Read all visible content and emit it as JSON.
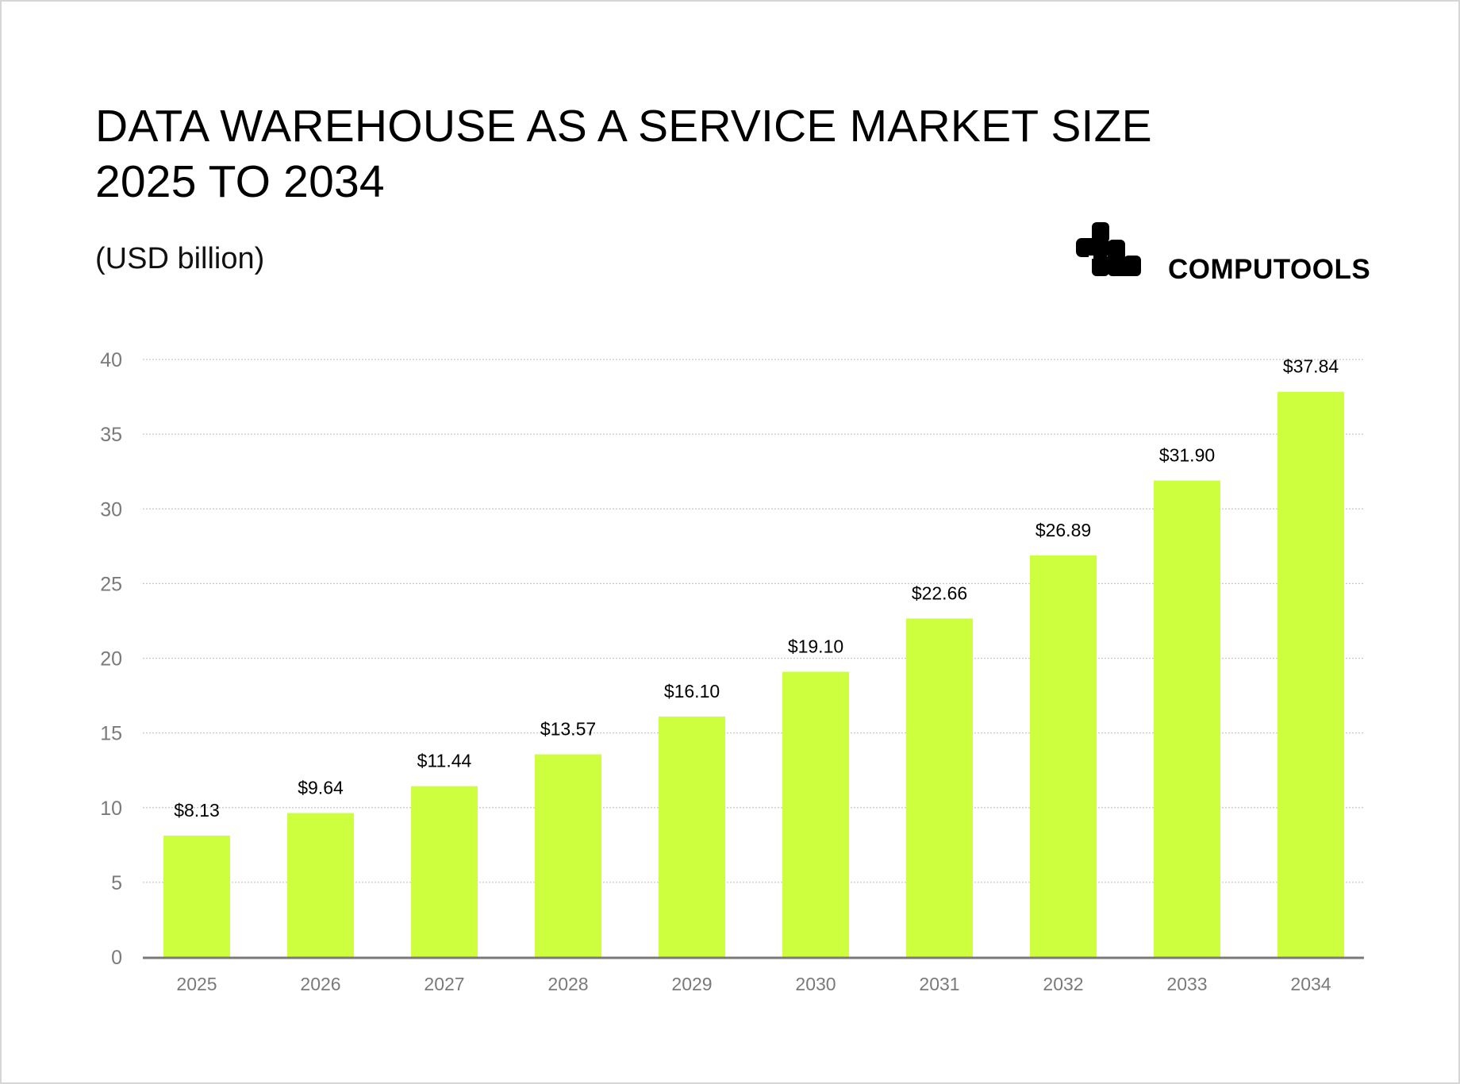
{
  "header": {
    "title_line1": "DATA WAREHOUSE AS A SERVICE MARKET SIZE",
    "title_line2": "2025 TO 2034",
    "subtitle": "(USD billion)"
  },
  "brand": {
    "name": "COMPUTOOLS",
    "icon": "computools-logo"
  },
  "chart_data": {
    "type": "bar",
    "title": "DATA WAREHOUSE AS A SERVICE MARKET SIZE 2025 TO 2034",
    "ylabel": "(USD billion)",
    "xlabel": "",
    "categories": [
      "2025",
      "2026",
      "2027",
      "2028",
      "2029",
      "2030",
      "2031",
      "2032",
      "2033",
      "2034"
    ],
    "values": [
      8.13,
      9.64,
      11.44,
      13.57,
      16.1,
      19.1,
      22.66,
      26.89,
      31.9,
      37.84
    ],
    "data_labels": [
      "$8.13",
      "$9.64",
      "$11.44",
      "$13.57",
      "$16.10",
      "$19.10",
      "$22.66",
      "$26.89",
      "$31.90",
      "$37.84"
    ],
    "ylim": [
      0,
      40
    ],
    "yticks": [
      0,
      5,
      10,
      15,
      20,
      25,
      30,
      35,
      40
    ],
    "grid": true,
    "legend": "none",
    "bar_color": "#cdff3f"
  }
}
